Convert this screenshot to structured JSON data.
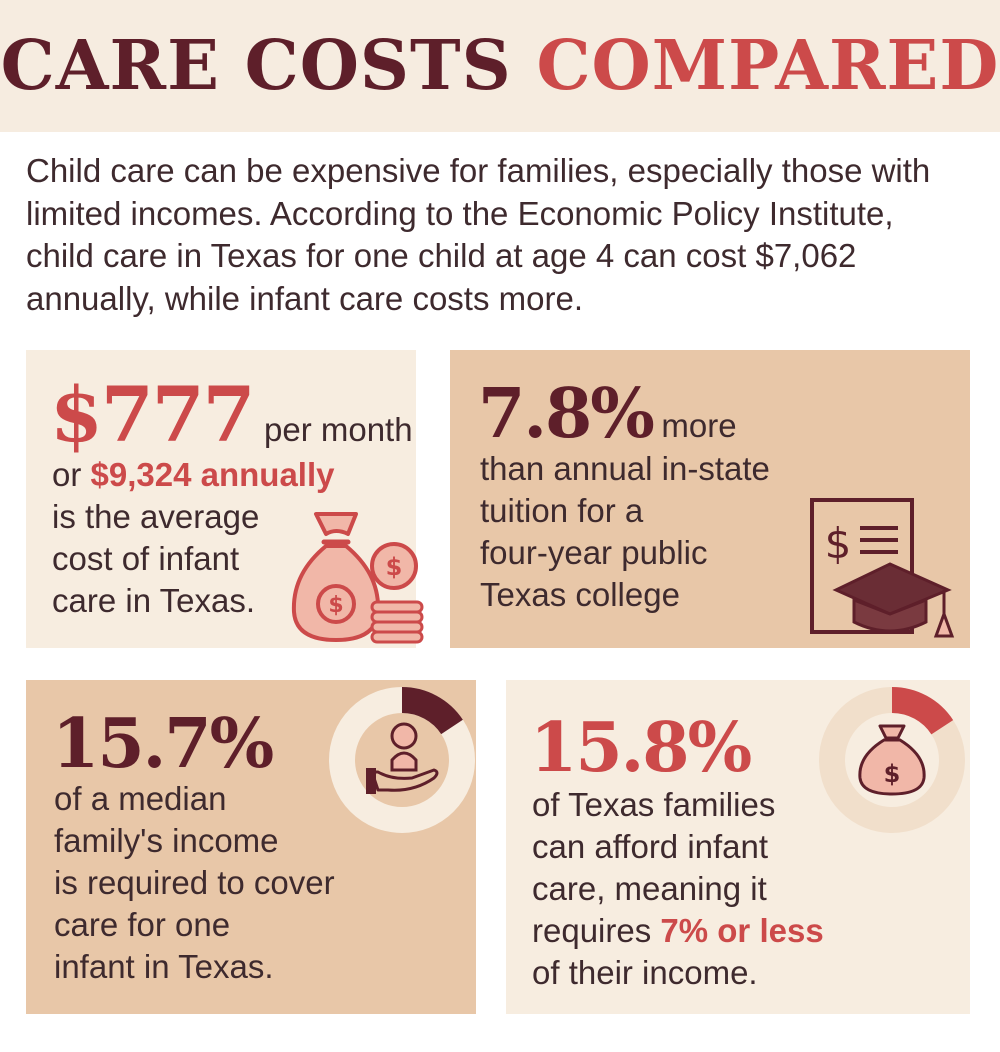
{
  "header": {
    "title_part1": "CARE COSTS",
    "title_part2": "COMPARED"
  },
  "intro": {
    "text": "Child care can be expensive for families, especially those with limited incomes. According to the Economic Policy Institute, child care in Texas for one child at age 4 can cost $7,062 annually, while infant care costs more."
  },
  "cards": {
    "monthly": {
      "big": "$777",
      "after_big": "per month",
      "or": "or",
      "annual": "$9,324 annually",
      "lines": [
        "is the average",
        "cost of infant",
        "care in Texas."
      ],
      "icon": "money-bag-coins-icon"
    },
    "tuition": {
      "big": "7.8%",
      "after_big": "more",
      "lines": [
        "than annual in-state",
        "tuition for a",
        "four-year public",
        "Texas college"
      ],
      "icon": "tuition-document-graduation-cap-icon",
      "icon_text": "$"
    },
    "income": {
      "big": "15.7%",
      "lines": [
        "of a median",
        "family's income",
        "is required to cover",
        "care for one",
        "infant in Texas."
      ],
      "donut_percent": 15.7,
      "icon": "baby-in-hand-icon"
    },
    "afford": {
      "big": "15.8%",
      "lines": [
        "of Texas families",
        "can afford infant",
        "care, meaning it"
      ],
      "requires": "requires",
      "threshold": "7% or less",
      "last_line": "of their income.",
      "donut_percent": 15.8,
      "icon": "money-bag-icon",
      "icon_text": "$"
    }
  },
  "colors": {
    "dark": "#5e1f2a",
    "red": "#cc4a4a",
    "cream": "#f7ede0",
    "tan": "#e8c7a8"
  }
}
